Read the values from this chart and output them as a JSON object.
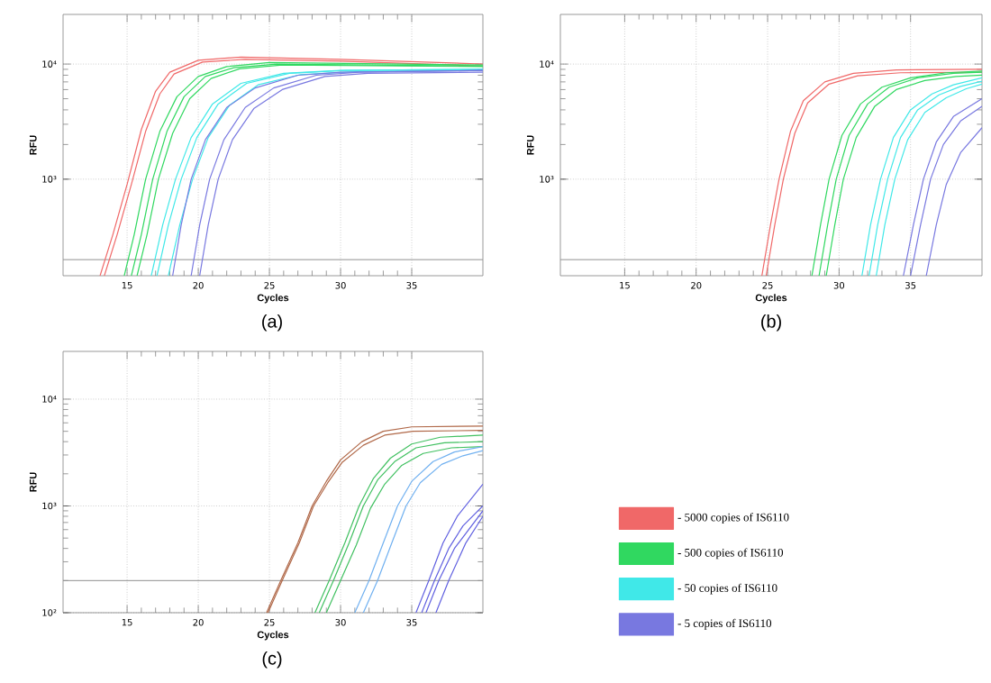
{
  "chart_data": [
    {
      "type": "line",
      "title": "(a)",
      "xlabel": "Cycles",
      "ylabel": "RFU",
      "log": "y",
      "grid": true,
      "legend": "bottom right",
      "xlim": [
        10.5,
        40
      ],
      "ylim": [
        145,
        27000
      ],
      "xticks": [
        15,
        20,
        25,
        30,
        35
      ],
      "yticks": [
        {
          "value": 1000,
          "label": "10³"
        },
        {
          "value": 10000,
          "label": "10⁴"
        }
      ],
      "ref_lines": [
        {
          "axis": "y",
          "value": 200,
          "color": "#909090"
        }
      ],
      "series": [
        {
          "name": "- 5000 copies of IS6110",
          "color": "#f06868",
          "x": [
            13.1,
            14,
            15,
            16,
            17,
            18,
            20,
            23,
            30,
            40
          ],
          "values": [
            145,
            330,
            900,
            2700,
            5800,
            8500,
            10800,
            11500,
            11000,
            10000
          ]
        },
        {
          "color": "#f06868",
          "x": [
            13.4,
            14.3,
            15.3,
            16.3,
            17.3,
            18.3,
            20.3,
            23.3,
            30,
            40
          ],
          "values": [
            145,
            330,
            900,
            2600,
            5500,
            8200,
            10400,
            11000,
            10600,
            9600
          ]
        },
        {
          "name": "- 500 copies of IS6110",
          "color": "#30d860",
          "x": [
            14.8,
            15.5,
            16.3,
            17.3,
            18.5,
            20,
            22,
            25,
            40
          ],
          "values": [
            145,
            330,
            1000,
            2600,
            5200,
            7800,
            9500,
            10300,
            9800
          ]
        },
        {
          "color": "#30d860",
          "x": [
            15.3,
            16,
            16.8,
            17.8,
            19,
            20.5,
            22.5,
            25.5,
            40
          ],
          "values": [
            145,
            330,
            1000,
            2600,
            5200,
            7800,
            9300,
            10000,
            9600
          ]
        },
        {
          "color": "#30d860",
          "x": [
            15.7,
            16.4,
            17.2,
            18.2,
            19.4,
            20.9,
            22.9,
            25.9,
            40
          ],
          "values": [
            145,
            330,
            1000,
            2500,
            5000,
            7500,
            9100,
            9800,
            9500
          ]
        },
        {
          "name": "- 50 copies of IS6110",
          "color": "#40e8e8",
          "x": [
            16.7,
            17.5,
            18.4,
            19.5,
            21,
            23,
            26,
            30,
            40
          ],
          "values": [
            145,
            400,
            1000,
            2300,
            4500,
            6800,
            8300,
            8800,
            9000
          ]
        },
        {
          "color": "#40e8e8",
          "x": [
            17.1,
            17.9,
            18.8,
            19.9,
            21.4,
            23.4,
            26.4,
            30.4,
            40
          ],
          "values": [
            145,
            400,
            1000,
            2300,
            4500,
            6800,
            8300,
            8800,
            9000
          ]
        },
        {
          "color": "#40e8e8",
          "x": [
            17.9,
            18.7,
            19.6,
            20.7,
            22.2,
            24.2,
            27.2,
            31.2,
            40
          ],
          "values": [
            145,
            400,
            1000,
            2300,
            4400,
            6600,
            8100,
            8600,
            8800
          ]
        },
        {
          "name": "- 5 copies of IS6110",
          "color": "#7878e0",
          "x": [
            18.2,
            18.8,
            19.5,
            20.5,
            22,
            24,
            27,
            30,
            40
          ],
          "values": [
            145,
            400,
            1000,
            2200,
            4200,
            6200,
            8000,
            8500,
            8800
          ]
        },
        {
          "color": "#7878e0",
          "x": [
            19.5,
            20.1,
            20.8,
            21.8,
            23.3,
            25.3,
            28.3,
            31.3,
            40
          ],
          "values": [
            145,
            400,
            1000,
            2200,
            4200,
            6200,
            8000,
            8500,
            8800
          ]
        },
        {
          "color": "#7878e0",
          "x": [
            20.1,
            20.7,
            21.4,
            22.4,
            23.9,
            25.9,
            28.9,
            31.9,
            40
          ],
          "values": [
            145,
            400,
            1000,
            2200,
            4100,
            6000,
            7800,
            8300,
            8500
          ]
        }
      ]
    },
    {
      "type": "line",
      "title": "(b)",
      "xlabel": "Cycles",
      "ylabel": "RFU",
      "log": "y",
      "grid": true,
      "xlim": [
        10.5,
        40
      ],
      "ylim": [
        145,
        27000
      ],
      "xticks": [
        15,
        20,
        25,
        30,
        35
      ],
      "yticks": [
        {
          "value": 1000,
          "label": "10³"
        },
        {
          "value": 10000,
          "label": "10⁴"
        }
      ],
      "ref_lines": [
        {
          "axis": "y",
          "value": 200,
          "color": "#909090"
        }
      ],
      "series": [
        {
          "color": "#f06868",
          "x": [
            24.6,
            25.2,
            25.8,
            26.6,
            27.5,
            29,
            31,
            34,
            40
          ],
          "values": [
            145,
            400,
            1000,
            2600,
            4800,
            7000,
            8300,
            8900,
            9000
          ]
        },
        {
          "color": "#f06868",
          "x": [
            24.9,
            25.5,
            26.1,
            26.9,
            27.8,
            29.3,
            31.3,
            34.3,
            40
          ],
          "values": [
            145,
            400,
            1000,
            2500,
            4600,
            6700,
            7900,
            8400,
            8500
          ]
        },
        {
          "color": "#30d860",
          "x": [
            28.1,
            28.7,
            29.3,
            30.2,
            31.5,
            33,
            35,
            37.5,
            40
          ],
          "values": [
            145,
            400,
            1000,
            2400,
            4500,
            6300,
            7600,
            8400,
            8700
          ]
        },
        {
          "color": "#30d860",
          "x": [
            28.6,
            29.2,
            29.8,
            30.7,
            32,
            33.5,
            35.5,
            38,
            40
          ],
          "values": [
            145,
            400,
            1000,
            2400,
            4500,
            6300,
            7600,
            8300,
            8500
          ]
        },
        {
          "color": "#30d860",
          "x": [
            29.1,
            29.7,
            30.3,
            31.2,
            32.5,
            34,
            36,
            38.2,
            40
          ],
          "values": [
            145,
            400,
            1000,
            2300,
            4300,
            6000,
            7200,
            7800,
            8000
          ]
        },
        {
          "color": "#40e8e8",
          "x": [
            31.6,
            32.2,
            32.9,
            33.8,
            35,
            36.5,
            38,
            40
          ],
          "values": [
            145,
            400,
            1000,
            2300,
            4000,
            5500,
            6600,
            7600
          ]
        },
        {
          "color": "#40e8e8",
          "x": [
            32.1,
            32.7,
            33.4,
            34.3,
            35.5,
            37,
            38.5,
            40
          ],
          "values": [
            145,
            400,
            1000,
            2300,
            4000,
            5400,
            6400,
            7100
          ]
        },
        {
          "color": "#40e8e8",
          "x": [
            32.6,
            33.2,
            33.9,
            34.8,
            36,
            37.5,
            38.9,
            40
          ],
          "values": [
            145,
            400,
            1000,
            2200,
            3800,
            5100,
            6100,
            6700
          ]
        },
        {
          "color": "#7878e0",
          "x": [
            34.5,
            35.2,
            35.9,
            36.8,
            38,
            40
          ],
          "values": [
            145,
            400,
            1000,
            2100,
            3500,
            5000
          ]
        },
        {
          "color": "#7878e0",
          "x": [
            35,
            35.7,
            36.4,
            37.3,
            38.5,
            40
          ],
          "values": [
            145,
            400,
            1000,
            2000,
            3200,
            4300
          ]
        },
        {
          "color": "#7878e0",
          "x": [
            36.1,
            36.8,
            37.5,
            38.5,
            40
          ],
          "values": [
            145,
            400,
            900,
            1700,
            2800
          ]
        }
      ]
    },
    {
      "type": "line",
      "title": "(c)",
      "xlabel": "Cycles",
      "ylabel": "RFU",
      "log": "y",
      "grid": true,
      "xlim": [
        10.5,
        40
      ],
      "ylim": [
        100,
        28000
      ],
      "xticks": [
        15,
        20,
        25,
        30,
        35
      ],
      "yticks": [
        {
          "value": 100,
          "label": "10²"
        },
        {
          "value": 1000,
          "label": "10³"
        },
        {
          "value": 10000,
          "label": "10⁴"
        }
      ],
      "ref_lines": [
        {
          "axis": "y",
          "value": 200,
          "color": "#909090"
        }
      ],
      "series": [
        {
          "color": "#b06848",
          "x": [
            24.8,
            25.8,
            27,
            28,
            29,
            30,
            31.5,
            33,
            35,
            40
          ],
          "values": [
            100,
            200,
            450,
            1000,
            1700,
            2700,
            4000,
            5000,
            5500,
            5600
          ]
        },
        {
          "color": "#b06848",
          "x": [
            24.9,
            25.9,
            27.1,
            28.1,
            29.1,
            30.1,
            31.6,
            33.1,
            35.1,
            40
          ],
          "values": [
            100,
            200,
            450,
            1000,
            1650,
            2550,
            3700,
            4600,
            5000,
            5100
          ]
        },
        {
          "color": "#40c060",
          "x": [
            28.2,
            29.2,
            30.3,
            31.3,
            32.3,
            33.5,
            35,
            37,
            40
          ],
          "values": [
            100,
            200,
            450,
            1000,
            1800,
            2800,
            3800,
            4400,
            4600
          ]
        },
        {
          "color": "#40c060",
          "x": [
            28.5,
            29.5,
            30.6,
            31.6,
            32.6,
            33.8,
            35.3,
            37.3,
            40
          ],
          "values": [
            100,
            200,
            450,
            1000,
            1750,
            2600,
            3500,
            3900,
            4000
          ]
        },
        {
          "color": "#40c060",
          "x": [
            29,
            30,
            31.1,
            32.1,
            33.1,
            34.3,
            35.8,
            37.8,
            40
          ],
          "values": [
            100,
            200,
            430,
            950,
            1600,
            2400,
            3100,
            3500,
            3600
          ]
        },
        {
          "color": "#70b0f0",
          "x": [
            31,
            32,
            33,
            34,
            35,
            36.5,
            38,
            40
          ],
          "values": [
            100,
            200,
            450,
            1000,
            1700,
            2600,
            3200,
            3600
          ]
        },
        {
          "color": "#70b0f0",
          "x": [
            31.6,
            32.6,
            33.6,
            34.6,
            35.6,
            37.1,
            38.6,
            40
          ],
          "values": [
            100,
            200,
            450,
            1000,
            1650,
            2450,
            2950,
            3300
          ]
        },
        {
          "color": "#6060e0",
          "x": [
            35.3,
            36.2,
            37.2,
            38.2,
            40
          ],
          "values": [
            100,
            200,
            450,
            800,
            1600
          ]
        },
        {
          "color": "#6060e0",
          "x": [
            35.7,
            36.6,
            37.6,
            38.6,
            40
          ],
          "values": [
            100,
            200,
            400,
            650,
            1000
          ]
        },
        {
          "color": "#6060e0",
          "x": [
            36,
            36.9,
            38,
            40
          ],
          "values": [
            100,
            200,
            400,
            900
          ]
        },
        {
          "color": "#6060e0",
          "x": [
            36.7,
            37.6,
            38.8,
            40
          ],
          "values": [
            100,
            200,
            450,
            800
          ]
        }
      ]
    }
  ]
}
